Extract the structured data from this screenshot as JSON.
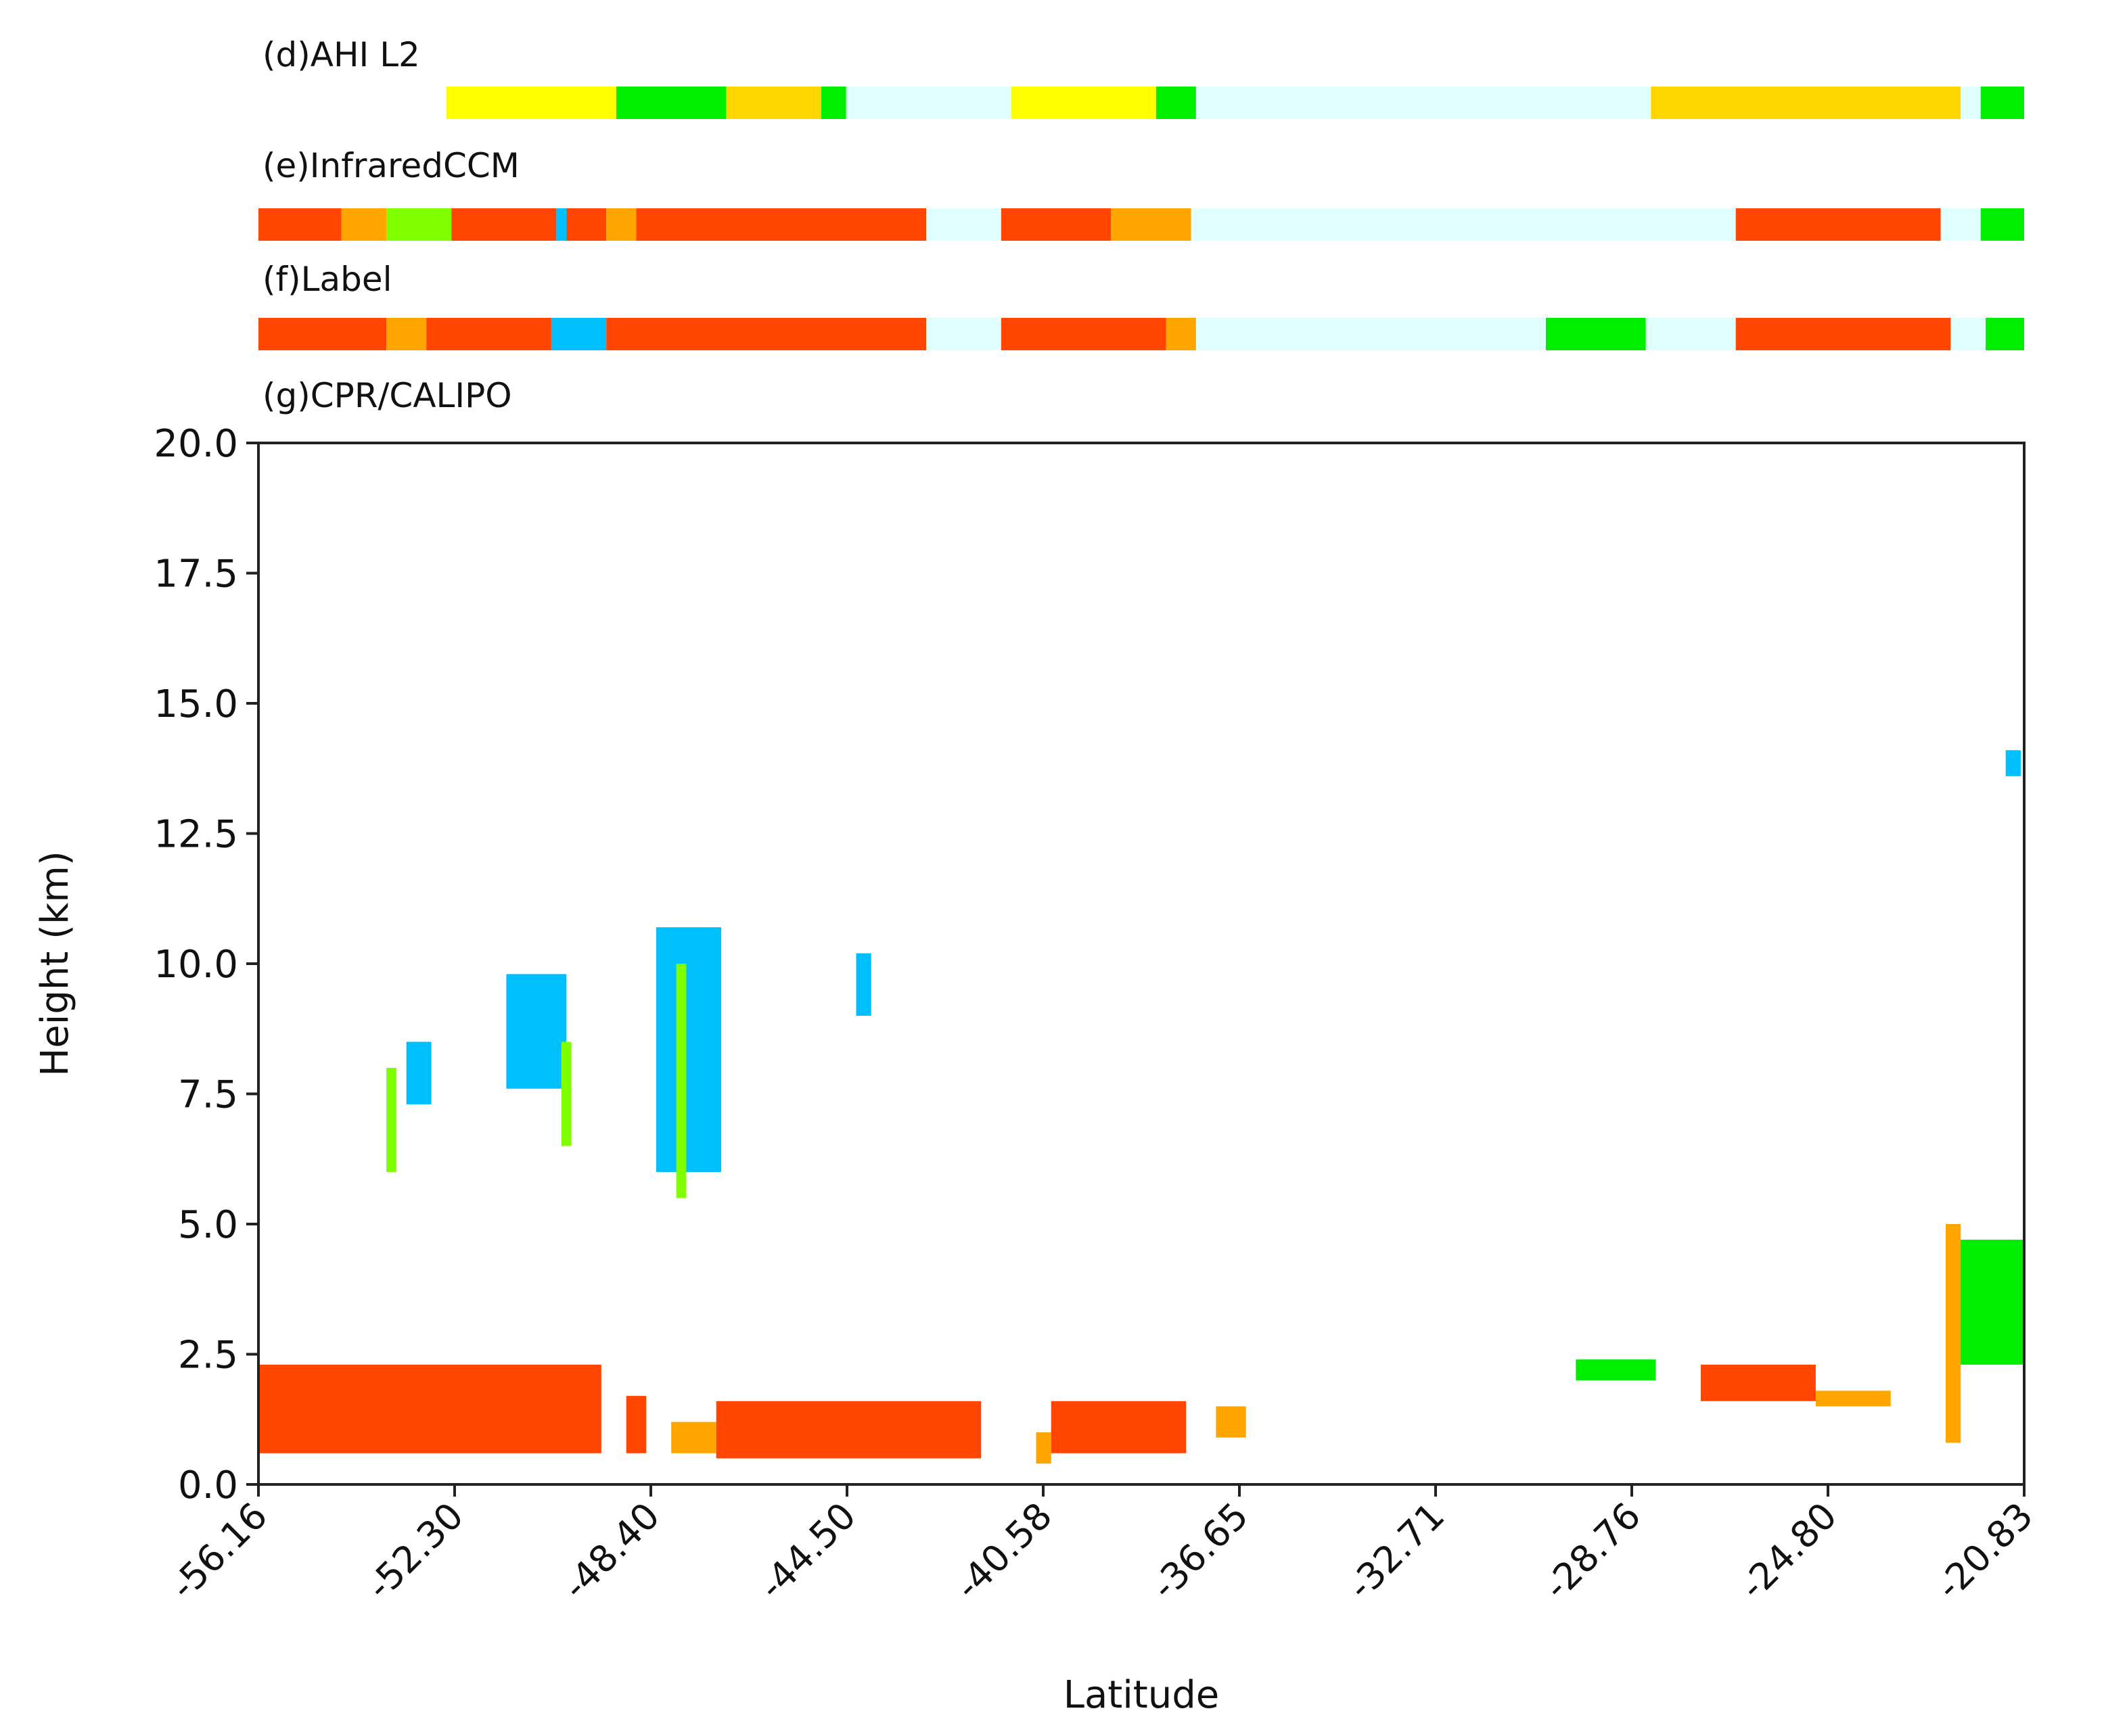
{
  "colors": {
    "red": "#ff4500",
    "orange": "#ffa500",
    "yellow": "#ffff00",
    "gold": "#ffd700",
    "lime": "#7fff00",
    "green": "#00ee00",
    "darkgreen": "#22aa22",
    "skyblue": "#00bfff",
    "clear": "#e0ffff",
    "pink": "#ff8070"
  },
  "strips": [
    {
      "id": "d",
      "title": "(d)AHI L2",
      "segments": [
        {
          "from": -52.4,
          "to": -49.0,
          "color": "yellow"
        },
        {
          "from": -49.0,
          "to": -46.8,
          "color": "green"
        },
        {
          "from": -46.8,
          "to": -44.9,
          "color": "gold"
        },
        {
          "from": -44.9,
          "to": -44.4,
          "color": "green"
        },
        {
          "from": -44.4,
          "to": -41.1,
          "color": "clear"
        },
        {
          "from": -41.1,
          "to": -38.2,
          "color": "yellow"
        },
        {
          "from": -38.2,
          "to": -37.4,
          "color": "green"
        },
        {
          "from": -37.4,
          "to": -28.3,
          "color": "clear"
        },
        {
          "from": -28.3,
          "to": -22.1,
          "color": "gold"
        },
        {
          "from": -22.1,
          "to": -21.7,
          "color": "clear"
        },
        {
          "from": -21.7,
          "to": -20.83,
          "color": "green"
        }
      ]
    },
    {
      "id": "e",
      "title": "(e)InfraredCCM",
      "segments": [
        {
          "from": -56.16,
          "to": -54.5,
          "color": "red"
        },
        {
          "from": -54.5,
          "to": -53.6,
          "color": "orange"
        },
        {
          "from": -53.6,
          "to": -52.3,
          "color": "lime"
        },
        {
          "from": -52.3,
          "to": -50.2,
          "color": "red"
        },
        {
          "from": -50.2,
          "to": -50.0,
          "color": "skyblue"
        },
        {
          "from": -50.0,
          "to": -49.2,
          "color": "red"
        },
        {
          "from": -49.2,
          "to": -48.6,
          "color": "orange"
        },
        {
          "from": -48.6,
          "to": -42.8,
          "color": "red"
        },
        {
          "from": -42.8,
          "to": -41.3,
          "color": "clear"
        },
        {
          "from": -41.3,
          "to": -39.1,
          "color": "red"
        },
        {
          "from": -39.1,
          "to": -37.5,
          "color": "orange"
        },
        {
          "from": -37.5,
          "to": -26.6,
          "color": "clear"
        },
        {
          "from": -26.6,
          "to": -22.5,
          "color": "red"
        },
        {
          "from": -22.5,
          "to": -21.7,
          "color": "clear"
        },
        {
          "from": -21.7,
          "to": -20.83,
          "color": "green"
        }
      ]
    },
    {
      "id": "f",
      "title": "(f)Label",
      "segments": [
        {
          "from": -56.16,
          "to": -53.6,
          "color": "red"
        },
        {
          "from": -53.6,
          "to": -52.8,
          "color": "orange"
        },
        {
          "from": -52.8,
          "to": -50.3,
          "color": "red"
        },
        {
          "from": -50.3,
          "to": -49.2,
          "color": "skyblue"
        },
        {
          "from": -49.2,
          "to": -42.8,
          "color": "red"
        },
        {
          "from": -42.8,
          "to": -41.3,
          "color": "clear"
        },
        {
          "from": -41.3,
          "to": -38.0,
          "color": "red"
        },
        {
          "from": -38.0,
          "to": -37.4,
          "color": "orange"
        },
        {
          "from": -37.4,
          "to": -30.4,
          "color": "clear"
        },
        {
          "from": -30.4,
          "to": -28.4,
          "color": "green"
        },
        {
          "from": -28.4,
          "to": -26.6,
          "color": "clear"
        },
        {
          "from": -26.6,
          "to": -22.3,
          "color": "red"
        },
        {
          "from": -22.3,
          "to": -21.6,
          "color": "clear"
        },
        {
          "from": -21.6,
          "to": -20.83,
          "color": "green"
        }
      ]
    }
  ],
  "chart_data": {
    "type": "scatter",
    "title": "(g)CPR/CALIPO",
    "xlabel": "Latitude",
    "ylabel": "Height (km)",
    "xlim": [
      -56.16,
      -20.83
    ],
    "ylim": [
      0.0,
      20.0
    ],
    "xticks": [
      "-56.16",
      "-52.30",
      "-48.40",
      "-44.50",
      "-40.58",
      "-36.65",
      "-32.71",
      "-28.76",
      "-24.80",
      "-20.83"
    ],
    "yticks": [
      "0.0",
      "2.5",
      "5.0",
      "7.5",
      "10.0",
      "12.5",
      "15.0",
      "17.5",
      "20.0"
    ],
    "cloud_regions": [
      {
        "color": "red",
        "x0": -56.16,
        "x1": -49.3,
        "y0": 0.6,
        "y1": 2.3
      },
      {
        "color": "red",
        "x0": -48.8,
        "x1": -48.4,
        "y0": 0.6,
        "y1": 1.7
      },
      {
        "color": "orange",
        "x0": -47.9,
        "x1": -47.0,
        "y0": 0.6,
        "y1": 1.2
      },
      {
        "color": "red",
        "x0": -47.0,
        "x1": -41.7,
        "y0": 0.5,
        "y1": 1.6
      },
      {
        "color": "orange",
        "x0": -40.6,
        "x1": -40.3,
        "y0": 0.4,
        "y1": 1.0
      },
      {
        "color": "red",
        "x0": -40.3,
        "x1": -37.6,
        "y0": 0.6,
        "y1": 1.6
      },
      {
        "color": "orange",
        "x0": -37.0,
        "x1": -36.4,
        "y0": 0.9,
        "y1": 1.5
      },
      {
        "color": "green",
        "x0": -29.8,
        "x1": -28.2,
        "y0": 2.0,
        "y1": 2.4
      },
      {
        "color": "red",
        "x0": -27.3,
        "x1": -25.0,
        "y0": 1.6,
        "y1": 2.3
      },
      {
        "color": "orange",
        "x0": -25.0,
        "x1": -23.5,
        "y0": 1.5,
        "y1": 1.8
      },
      {
        "color": "green",
        "x0": -22.3,
        "x1": -20.83,
        "y0": 2.3,
        "y1": 4.7
      },
      {
        "color": "orange",
        "x0": -22.4,
        "x1": -22.1,
        "y0": 0.8,
        "y1": 5.0
      },
      {
        "color": "lime",
        "x0": -53.6,
        "x1": -53.4,
        "y0": 6.0,
        "y1": 8.0
      },
      {
        "color": "skyblue",
        "x0": -53.2,
        "x1": -52.7,
        "y0": 7.3,
        "y1": 8.5
      },
      {
        "color": "skyblue",
        "x0": -51.2,
        "x1": -50.0,
        "y0": 7.6,
        "y1": 9.8
      },
      {
        "color": "lime",
        "x0": -50.1,
        "x1": -49.9,
        "y0": 6.5,
        "y1": 8.5
      },
      {
        "color": "skyblue",
        "x0": -48.2,
        "x1": -46.9,
        "y0": 6.0,
        "y1": 10.7
      },
      {
        "color": "lime",
        "x0": -47.8,
        "x1": -47.6,
        "y0": 5.5,
        "y1": 10.0
      },
      {
        "color": "skyblue",
        "x0": -44.2,
        "x1": -43.9,
        "y0": 9.0,
        "y1": 10.2
      },
      {
        "color": "skyblue",
        "x0": -21.2,
        "x1": -20.9,
        "y0": 13.6,
        "y1": 14.1
      }
    ]
  }
}
